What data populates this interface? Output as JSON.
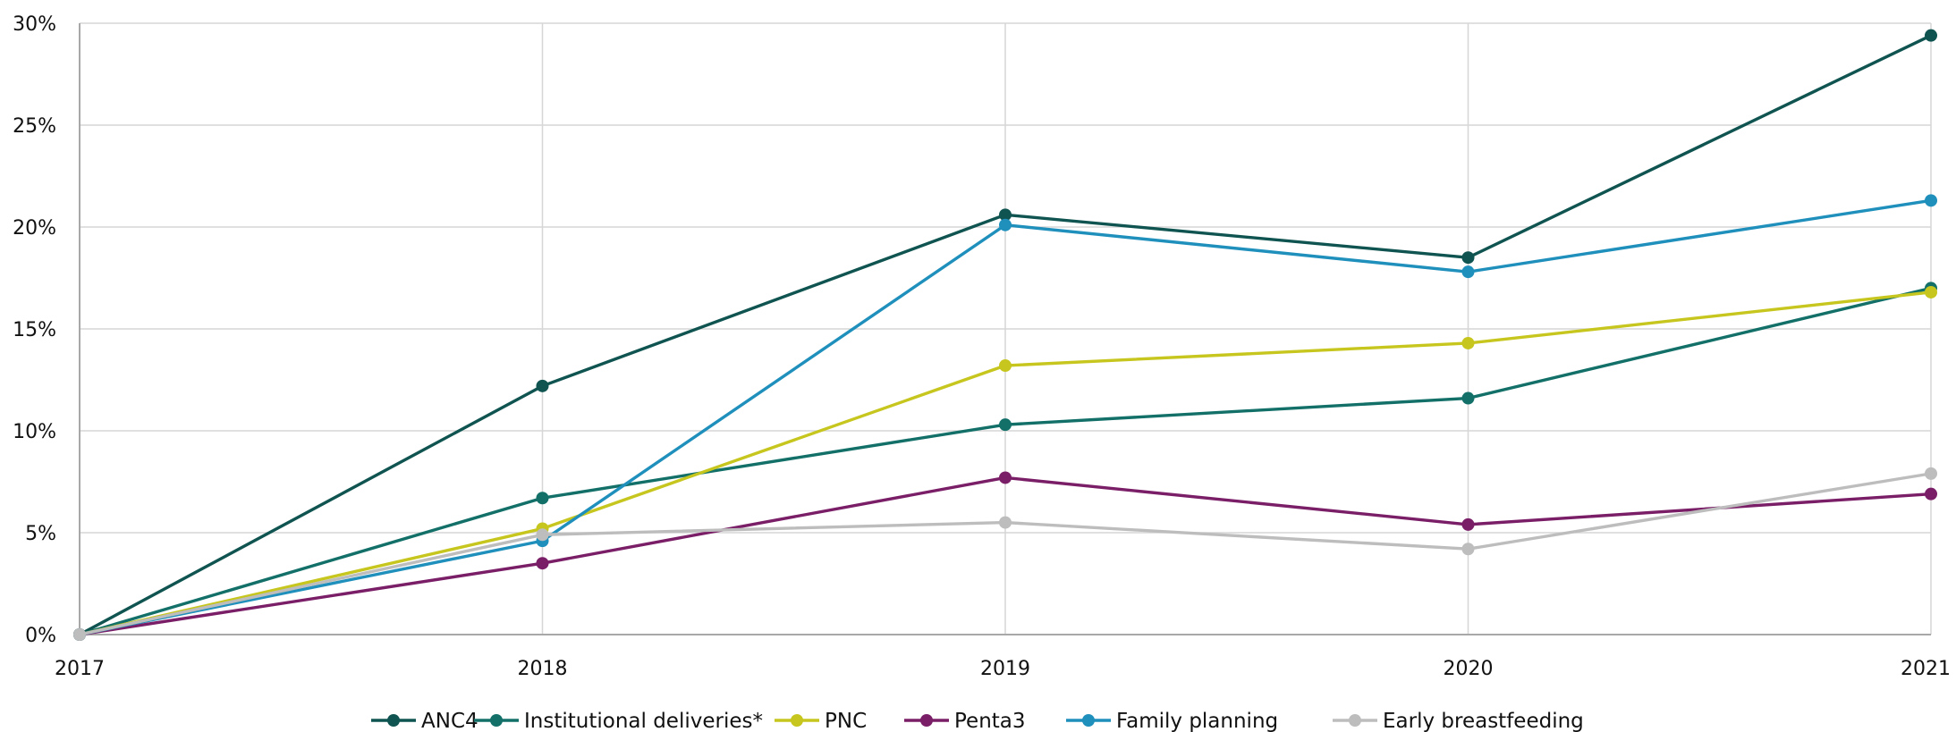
{
  "chart_data": {
    "type": "line",
    "x": [
      "2017",
      "2018",
      "2019",
      "2020",
      "2021"
    ],
    "ylim": [
      0,
      30
    ],
    "yticks": [
      0,
      5,
      10,
      15,
      20,
      25,
      30
    ],
    "ytick_labels": [
      "0%",
      "5%",
      "10%",
      "15%",
      "20%",
      "25%",
      "30%"
    ],
    "grid": true,
    "legend_position": "bottom",
    "series": [
      {
        "name": "ANC4",
        "color": "#0f5450",
        "values": [
          0,
          12.2,
          20.6,
          18.5,
          29.4
        ]
      },
      {
        "name": "Institutional deliveries*",
        "color": "#127069",
        "values": [
          0,
          6.7,
          10.3,
          11.6,
          17.0
        ]
      },
      {
        "name": "PNC",
        "color": "#c6c61e",
        "values": [
          0,
          5.2,
          13.2,
          14.3,
          16.8
        ]
      },
      {
        "name": "Penta3",
        "color": "#7a1e67",
        "values": [
          0,
          3.5,
          7.7,
          5.4,
          6.9
        ]
      },
      {
        "name": "Family planning",
        "color": "#1f8fbc",
        "values": [
          0,
          4.6,
          20.1,
          17.8,
          21.3
        ]
      },
      {
        "name": "Early breastfeeding",
        "color": "#bdbdbd",
        "values": [
          0,
          4.9,
          5.5,
          4.2,
          7.9
        ]
      }
    ]
  }
}
